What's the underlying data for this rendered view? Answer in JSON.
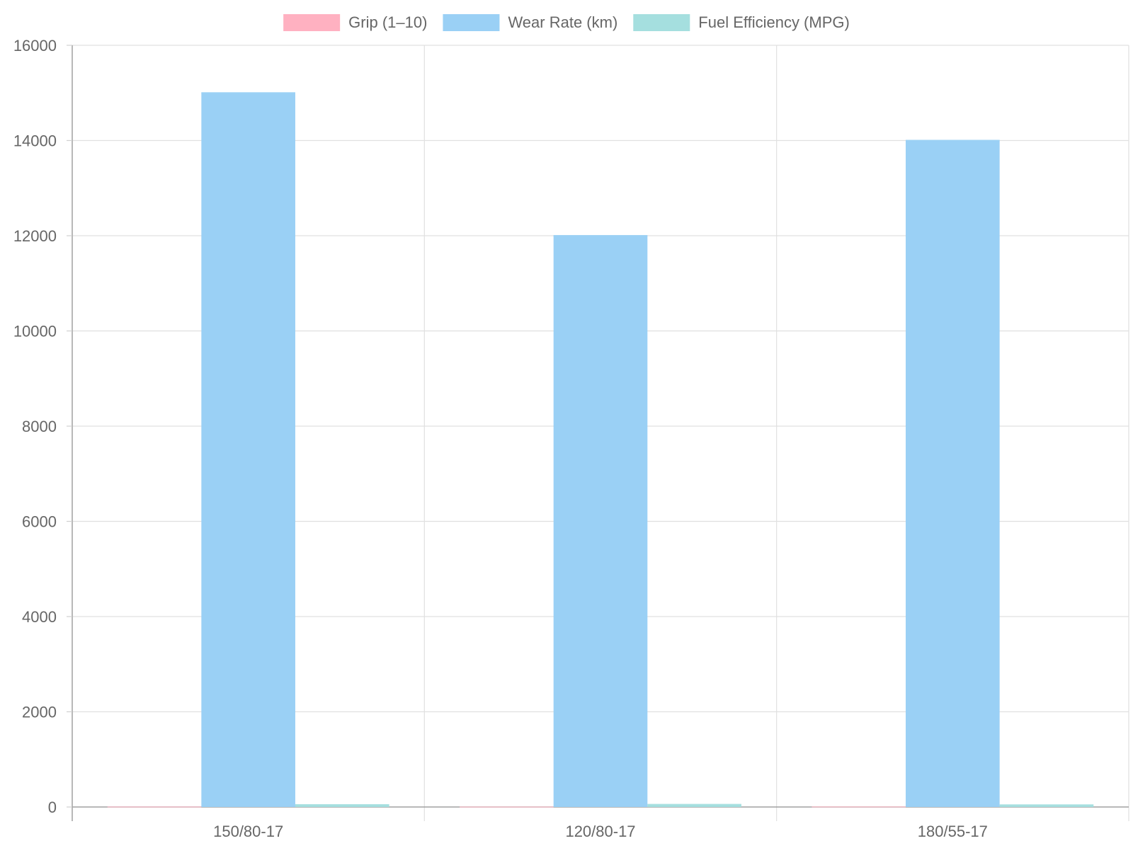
{
  "chart_data": {
    "type": "bar",
    "title": "",
    "xlabel": "",
    "ylabel": "",
    "categories": [
      "150/80-17",
      "120/80-17",
      "180/55-17"
    ],
    "series": [
      {
        "name": "Grip (1–10)",
        "values": [
          8,
          7,
          9
        ],
        "color": "#ffb1c1"
      },
      {
        "name": "Wear Rate (km)",
        "values": [
          15000,
          12000,
          14000
        ],
        "color": "#9ad0f5"
      },
      {
        "name": "Fuel Efficiency (MPG)",
        "values": [
          45,
          50,
          40
        ],
        "color": "#a5dfdf"
      }
    ],
    "ylim": [
      0,
      16000
    ],
    "yticks": [
      0,
      2000,
      4000,
      6000,
      8000,
      10000,
      12000,
      14000,
      16000
    ],
    "grid": true,
    "legend_position": "top"
  }
}
